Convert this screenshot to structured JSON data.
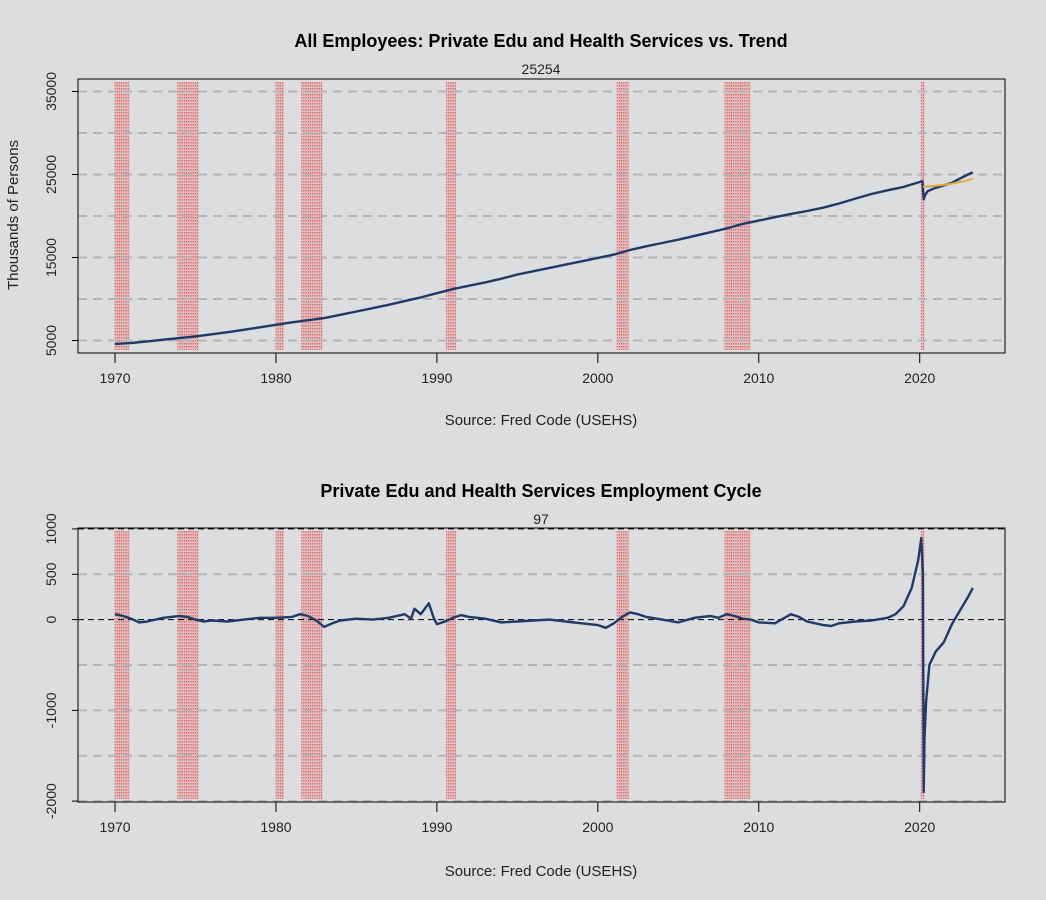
{
  "colors": {
    "background": "#dcdddf",
    "series": "#1f3a68",
    "trend": "#e6a83a",
    "recession": "#e8353a",
    "grid": "#b5b5b5"
  },
  "chart_data": [
    {
      "type": "line",
      "title": "All Employees: Private Edu and Health Services vs. Trend",
      "subtitle": "25254",
      "xlabel": "Source: Fred Code (USEHS)",
      "ylabel": "Thousands of Persons",
      "xlim": [
        1967.7,
        2025.3
      ],
      "ylim": [
        3500,
        36500
      ],
      "xticks": [
        "1970",
        "1980",
        "1990",
        "2000",
        "2010",
        "2020"
      ],
      "yticks": [
        "5000",
        "15000",
        "25000",
        "35000"
      ],
      "gridlines_y": [
        5000,
        10000,
        15000,
        20000,
        25000,
        30000,
        35000
      ],
      "recessions": [
        [
          1970.0,
          1970.9
        ],
        [
          1973.9,
          1975.2
        ],
        [
          1980.0,
          1980.5
        ],
        [
          1981.6,
          1982.9
        ],
        [
          1990.6,
          1991.2
        ],
        [
          2001.2,
          2001.9
        ],
        [
          2007.9,
          2009.5
        ],
        [
          2020.1,
          2020.3
        ]
      ],
      "series": [
        {
          "name": "",
          "style": "series",
          "x": [
            1970,
            1971,
            1972,
            1973,
            1974,
            1975,
            1976,
            1977,
            1978,
            1979,
            1980,
            1981,
            1982,
            1983,
            1984,
            1985,
            1986,
            1987,
            1988,
            1989,
            1990,
            1991,
            1992,
            1993,
            1994,
            1995,
            1996,
            1997,
            1998,
            1999,
            2000,
            2001,
            2002,
            2003,
            2004,
            2005,
            2006,
            2007,
            2008,
            2009,
            2010,
            2011,
            2012,
            2013,
            2014,
            2015,
            2016,
            2017,
            2018,
            2019,
            2020.0,
            2020.17,
            2020.25,
            2020.33,
            2020.5,
            2020.75,
            2021,
            2021.5,
            2022,
            2022.5,
            2023,
            2023.3
          ],
          "y": [
            4600,
            4700,
            4900,
            5100,
            5300,
            5500,
            5750,
            6000,
            6300,
            6600,
            6900,
            7200,
            7450,
            7700,
            8100,
            8500,
            8900,
            9300,
            9750,
            10200,
            10700,
            11200,
            11600,
            12000,
            12450,
            12950,
            13350,
            13750,
            14150,
            14550,
            14950,
            15350,
            15900,
            16350,
            16750,
            17150,
            17600,
            18050,
            18500,
            19050,
            19450,
            19850,
            20250,
            20600,
            21000,
            21500,
            22100,
            22650,
            23100,
            23500,
            24100,
            24200,
            22000,
            22500,
            23000,
            23200,
            23400,
            23700,
            24000,
            24500,
            25000,
            25254
          ]
        },
        {
          "name": "",
          "style": "trend",
          "x": [
            2020.2,
            2021,
            2022,
            2023,
            2023.3
          ],
          "y": [
            23500,
            23650,
            23900,
            24300,
            24500
          ]
        }
      ]
    },
    {
      "type": "line",
      "title": "Private Edu and Health Services Employment Cycle",
      "subtitle": "97",
      "xlabel": "Source: Fred Code (USEHS)",
      "ylabel": "",
      "xlim": [
        1967.7,
        2025.3
      ],
      "ylim": [
        -2010,
        1010
      ],
      "xticks": [
        "1970",
        "1980",
        "1990",
        "2000",
        "2010",
        "2020"
      ],
      "yticks": [
        "-2000",
        "-1000",
        "0",
        "500",
        "1000"
      ],
      "gridlines_y": [
        -2000,
        -1500,
        -1000,
        -500,
        500
      ],
      "dashed_black_y": [
        0,
        1000
      ],
      "recessions": [
        [
          1970.0,
          1970.9
        ],
        [
          1973.9,
          1975.2
        ],
        [
          1980.0,
          1980.5
        ],
        [
          1981.6,
          1982.9
        ],
        [
          1990.6,
          1991.2
        ],
        [
          2001.2,
          2001.9
        ],
        [
          2007.9,
          2009.5
        ],
        [
          2020.1,
          2020.3
        ]
      ],
      "series": [
        {
          "name": "",
          "style": "series",
          "x": [
            1970,
            1970.5,
            1971,
            1971.5,
            1972,
            1973,
            1974,
            1974.5,
            1975,
            1975.5,
            1976,
            1977,
            1978,
            1979,
            1980,
            1981,
            1981.5,
            1982,
            1982.5,
            1983,
            1983.5,
            1984,
            1985,
            1986,
            1987,
            1988,
            1988.4,
            1988.6,
            1989,
            1989.5,
            1989.8,
            1990,
            1990.5,
            1991,
            1991.5,
            1992,
            1993,
            1994,
            1995,
            1996,
            1997,
            1998,
            1999,
            2000,
            2000.5,
            2001,
            2001.5,
            2002,
            2002.5,
            2003,
            2004,
            2005,
            2006,
            2007,
            2007.5,
            2008,
            2008.5,
            2009,
            2009.5,
            2010,
            2011,
            2012,
            2012.5,
            2013,
            2014,
            2014.5,
            2015,
            2016,
            2017,
            2018,
            2018.5,
            2019,
            2019.5,
            2019.9,
            2020.1,
            2020.2,
            2020.25,
            2020.3,
            2020.4,
            2020.6,
            2021,
            2021.5,
            2022,
            2022.5,
            2023,
            2023.3
          ],
          "y": [
            60,
            40,
            10,
            -30,
            -20,
            20,
            40,
            30,
            0,
            -20,
            -10,
            -20,
            0,
            20,
            20,
            30,
            60,
            40,
            -10,
            -80,
            -40,
            -10,
            10,
            0,
            20,
            60,
            10,
            120,
            60,
            180,
            20,
            -50,
            -20,
            20,
            50,
            30,
            10,
            -30,
            -20,
            -10,
            0,
            -20,
            -40,
            -60,
            -90,
            -40,
            30,
            80,
            60,
            30,
            0,
            -30,
            20,
            40,
            20,
            60,
            40,
            10,
            0,
            -30,
            -40,
            60,
            30,
            -20,
            -60,
            -70,
            -40,
            -20,
            -10,
            20,
            60,
            150,
            350,
            650,
            900,
            500,
            -1900,
            -1300,
            -900,
            -500,
            -350,
            -250,
            -50,
            100,
            250,
            350
          ]
        }
      ]
    }
  ]
}
